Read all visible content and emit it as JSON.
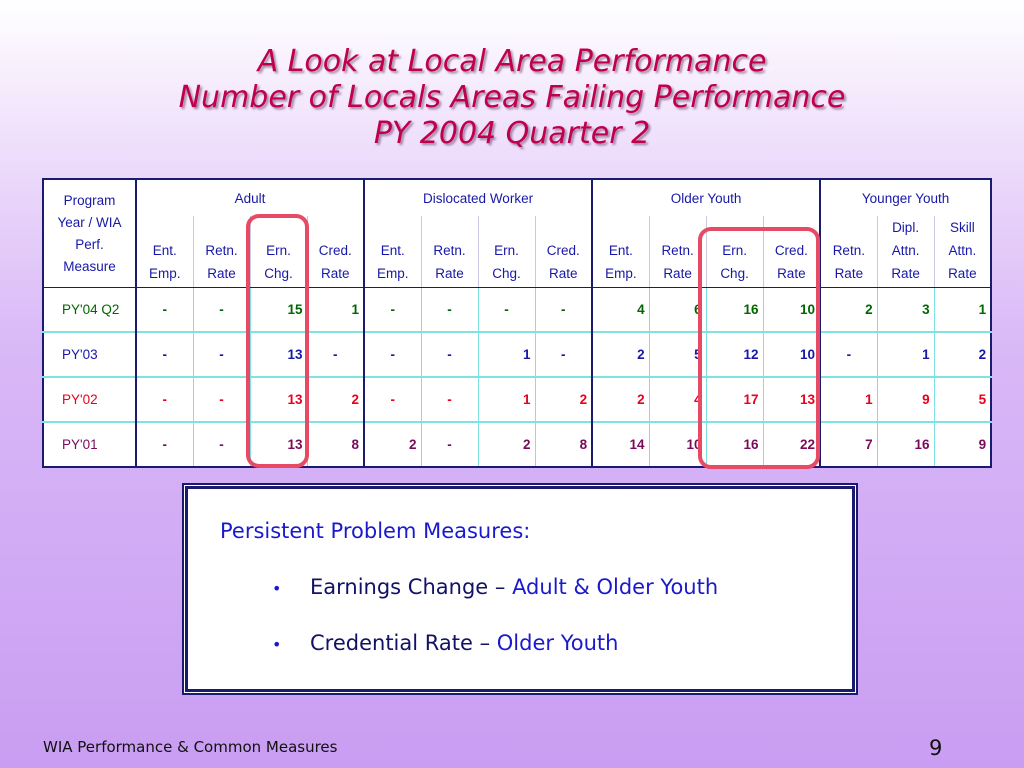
{
  "title": {
    "line1": "A Look at Local Area Performance",
    "line2": "Number of Locals Areas Failing Performance",
    "line3": "PY 2004 Quarter 2"
  },
  "table": {
    "corner_lines": [
      "Program",
      "Year / WIA",
      "Perf.",
      "Measure"
    ],
    "groups": [
      "Adult",
      "Dislocated Worker",
      "Older Youth",
      "Younger Youth"
    ],
    "columns": [
      {
        "line1": "",
        "line2": "Ent.",
        "line3": "Emp."
      },
      {
        "line1": "",
        "line2": "Retn.",
        "line3": "Rate"
      },
      {
        "line1": "",
        "line2": "Ern.",
        "line3": "Chg."
      },
      {
        "line1": "",
        "line2": "Cred.",
        "line3": "Rate"
      },
      {
        "line1": "",
        "line2": "Ent.",
        "line3": "Emp."
      },
      {
        "line1": "",
        "line2": "Retn.",
        "line3": "Rate"
      },
      {
        "line1": "",
        "line2": "Ern.",
        "line3": "Chg."
      },
      {
        "line1": "",
        "line2": "Cred.",
        "line3": "Rate"
      },
      {
        "line1": "",
        "line2": "Ent.",
        "line3": "Emp."
      },
      {
        "line1": "",
        "line2": "Retn.",
        "line3": "Rate"
      },
      {
        "line1": "",
        "line2": "Ern.",
        "line3": "Chg."
      },
      {
        "line1": "",
        "line2": "Cred.",
        "line3": "Rate"
      },
      {
        "line1": "",
        "line2": "Retn.",
        "line3": "Rate"
      },
      {
        "line1": "Dipl.",
        "line2": "Attn.",
        "line3": "Rate"
      },
      {
        "line1": "Skill",
        "line2": "Attn.",
        "line3": "Rate"
      }
    ],
    "rows": [
      {
        "label": "PY'04 Q2",
        "color": "#006600",
        "cells": [
          "-",
          "-",
          "15",
          "1",
          "-",
          "-",
          "-",
          "-",
          "4",
          "6",
          "16",
          "10",
          "2",
          "3",
          "1"
        ]
      },
      {
        "label": "PY'03",
        "color": "#1818a8",
        "cells": [
          "-",
          "-",
          "13",
          "-",
          "-",
          "-",
          "1",
          "-",
          "2",
          "5",
          "12",
          "10",
          "-",
          "1",
          "2"
        ]
      },
      {
        "label": "PY'02",
        "color": "#e8001c",
        "cells": [
          "-",
          "-",
          "13",
          "2",
          "-",
          "-",
          "1",
          "2",
          "2",
          "4",
          "17",
          "13",
          "1",
          "9",
          "5"
        ]
      },
      {
        "label": "PY'01",
        "color": "#7a0a5a",
        "cells": [
          "-",
          "-",
          "13",
          "8",
          "2",
          "-",
          "2",
          "8",
          "14",
          "10",
          "16",
          "22",
          "7",
          "16",
          "9"
        ]
      }
    ]
  },
  "problem_box": {
    "heading": "Persistent Problem Measures:",
    "bullets": [
      {
        "measure": "Earnings Change – ",
        "groups": "Adult & Older Youth"
      },
      {
        "measure": "Credential Rate – ",
        "groups": "Older Youth"
      }
    ]
  },
  "footer": {
    "left": "WIA Performance & Common Measures",
    "page_number": "9"
  },
  "colors": {
    "title": "#c0004a",
    "header_text": "#1818a8",
    "highlight": "#e64a64",
    "box_text": "#1a1acc"
  }
}
